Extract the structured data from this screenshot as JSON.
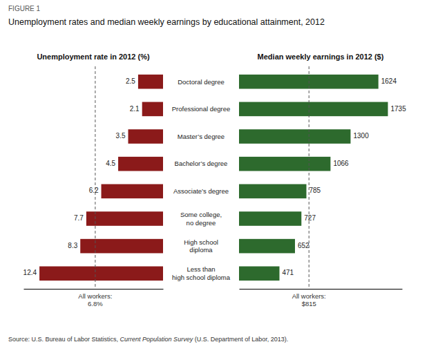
{
  "figure_label": "FIGURE 1",
  "title": "Unemployment rates and median weekly earnings by educational attainment, 2012",
  "source": [
    "Source: U.S. Bureau of Labor Statistics, ",
    "Current Population Survey",
    " (U.S. Department of Labor, 2013)."
  ],
  "chart_data": [
    {
      "type": "bar",
      "orientation": "horizontal",
      "title": "Unemployment rate in 2012 (%)",
      "categories": [
        "Doctoral degree",
        "Professional degree",
        "Master’s degree",
        "Bachelor’s degree",
        "Associate’s degree",
        "Some college,\nno degree",
        "High school\ndiploma",
        "Less than\nhigh school diploma"
      ],
      "values": [
        2.5,
        2.1,
        3.5,
        4.5,
        6.2,
        7.7,
        8.3,
        12.4
      ],
      "color": "#8B1A1A",
      "xlim": [
        14.0,
        0
      ],
      "xticks": [],
      "tick_labels": false,
      "grid": false,
      "data_labels": true,
      "reference_line": {
        "value": 6.8,
        "label": "All workers:\n6.8%"
      }
    },
    {
      "type": "bar",
      "orientation": "horizontal",
      "title": "Median weekly earnings in 2012 ($)",
      "categories": [
        "Doctoral degree",
        "Professional degree",
        "Master’s degree",
        "Bachelor’s degree",
        "Associate’s degree",
        "Some college,\nno degree",
        "High school\ndiploma",
        "Less than\nhigh school diploma"
      ],
      "values": [
        1624,
        1735,
        1300,
        1066,
        785,
        727,
        652,
        471
      ],
      "color": "#2D6A2D",
      "xlim": [
        0,
        1900
      ],
      "xticks": [],
      "tick_labels": false,
      "grid": false,
      "data_labels": true,
      "reference_line": {
        "value": 815,
        "label": "All workers:\n$815"
      }
    }
  ]
}
